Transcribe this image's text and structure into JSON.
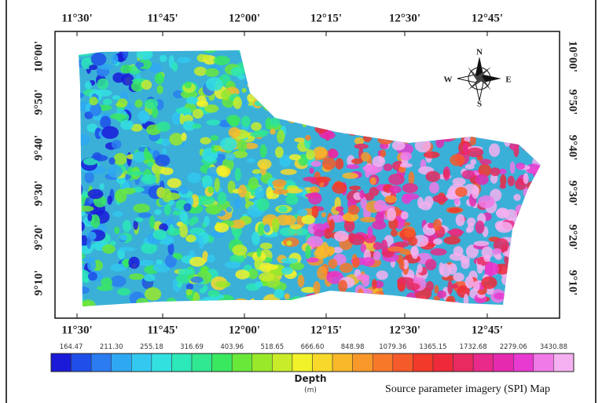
{
  "map": {
    "x_labels_top": [
      "11°30'",
      "11°45'",
      "12°00'",
      "12°15'",
      "12°30'",
      "12°45'"
    ],
    "x_labels_bottom": [
      "11°30'",
      "11°45'",
      "12°00'",
      "12°15'",
      "12°30'",
      "12°45'"
    ],
    "y_labels_left": [
      "10°00'",
      "9°50'",
      "9°40'",
      "9°30'",
      "9°20'",
      "9°10'"
    ],
    "y_labels_right": [
      "10°00'",
      "9°50'",
      "9°40'",
      "9°30'",
      "9°20'",
      "9°10'"
    ],
    "compass": {
      "north": "N",
      "south": "S",
      "east": "E",
      "west": "W"
    },
    "legend": {
      "values": [
        "164.47",
        "211.30",
        "255.18",
        "316.69",
        "403.96",
        "518.65",
        "666.60",
        "848.98",
        "1079.36",
        "1365.15",
        "1732.68",
        "2279.06",
        "3430.88"
      ],
      "title": "Depth",
      "unit": "(m)"
    },
    "caption": "Source parameter imagery (SPI) Map"
  }
}
